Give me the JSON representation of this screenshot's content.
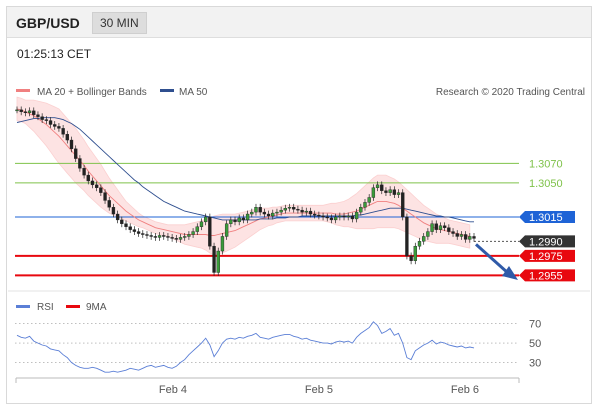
{
  "header": {
    "symbol": "GBP/USD",
    "timeframe": "30 MIN"
  },
  "timestamp": "01:25:13 CET",
  "copyright": "Research © 2020 Trading Central",
  "chart_data": [
    {
      "type": "candlestick",
      "legend": [
        {
          "label": "MA 20 + Bollinger Bands",
          "color": "#f08080"
        },
        {
          "label": "MA 50",
          "color": "#2f4f8f"
        }
      ],
      "x_tick_labels": [
        "Feb 4",
        "Feb 5",
        "Feb 6"
      ],
      "y_range": [
        1.294,
        1.313
      ],
      "price_close": [
        1.3125,
        1.3123,
        1.3122,
        1.3124,
        1.312,
        1.3118,
        1.3115,
        1.3114,
        1.311,
        1.3108,
        1.3106,
        1.31,
        1.3094,
        1.3085,
        1.3075,
        1.3065,
        1.3058,
        1.3052,
        1.3048,
        1.3045,
        1.304,
        1.3032,
        1.3025,
        1.3018,
        1.3012,
        1.3008,
        1.3005,
        1.3002,
        1.3,
        1.2998,
        1.2997,
        1.2996,
        1.2995,
        1.2994,
        1.2996,
        1.2995,
        1.2994,
        1.2993,
        1.2992,
        1.2994,
        1.2995,
        1.2997,
        1.3,
        1.3005,
        1.301,
        1.3015,
        1.2985,
        1.2958,
        1.298,
        1.2995,
        1.3008,
        1.3012,
        1.301,
        1.3014,
        1.3012,
        1.3018,
        1.302,
        1.3025,
        1.302,
        1.3018,
        1.3016,
        1.3019,
        1.302,
        1.3022,
        1.3024,
        1.3025,
        1.3023,
        1.3022,
        1.302,
        1.3021,
        1.3018,
        1.3017,
        1.3016,
        1.3015,
        1.3014,
        1.3012,
        1.3015,
        1.3016,
        1.3015,
        1.3016,
        1.3013,
        1.302,
        1.3025,
        1.303,
        1.3035,
        1.3045,
        1.3048,
        1.3042,
        1.304,
        1.3043,
        1.3038,
        1.304,
        1.3015,
        1.2975,
        1.297,
        1.2985,
        1.299,
        1.2995,
        1.3,
        1.3008,
        1.3002,
        1.3006,
        1.3004,
        1.3,
        1.2998,
        1.2995,
        1.2997,
        1.2992,
        1.2995,
        1.2993
      ],
      "ma50": [
        1.3112,
        1.3113,
        1.3114,
        1.3115,
        1.3116,
        1.3116,
        1.3117,
        1.3117,
        1.3117,
        1.3117,
        1.3116,
        1.3115,
        1.3113,
        1.3111,
        1.3108,
        1.3105,
        1.3101,
        1.3097,
        1.3093,
        1.3089,
        1.3085,
        1.3081,
        1.3077,
        1.3073,
        1.3069,
        1.3065,
        1.3061,
        1.3057,
        1.3053,
        1.305,
        1.3046,
        1.3043,
        1.304,
        1.3037,
        1.3034,
        1.3031,
        1.3029,
        1.3027,
        1.3025,
        1.3023,
        1.3021,
        1.302,
        1.3019,
        1.3018,
        1.3017,
        1.3016,
        1.3015,
        1.3014,
        1.3013,
        1.3012,
        1.3012,
        1.3012,
        1.3012,
        1.3012,
        1.3012,
        1.3012,
        1.3012,
        1.3012,
        1.3013,
        1.3013,
        1.3013,
        1.3013,
        1.3014,
        1.3014,
        1.3014,
        1.3015,
        1.3015,
        1.3015,
        1.3016,
        1.3016,
        1.3016,
        1.3016,
        1.3016,
        1.3016,
        1.3016,
        1.3016,
        1.3016,
        1.3016,
        1.3016,
        1.3016,
        1.3016,
        1.3017,
        1.3017,
        1.3018,
        1.3019,
        1.302,
        1.3021,
        1.3022,
        1.3023,
        1.3024,
        1.3024,
        1.3024,
        1.3024,
        1.3023,
        1.3022,
        1.3021,
        1.302,
        1.3019,
        1.3018,
        1.3017,
        1.3016,
        1.3016,
        1.3015,
        1.3015,
        1.3014,
        1.3013,
        1.3012,
        1.3011,
        1.301,
        1.301
      ],
      "ma20": [
        1.3126,
        1.3125,
        1.3123,
        1.3121,
        1.3119,
        1.3116,
        1.3113,
        1.311,
        1.3106,
        1.3102,
        1.3098,
        1.3093,
        1.3088,
        1.3083,
        1.3078,
        1.3073,
        1.3068,
        1.3062,
        1.3057,
        1.3052,
        1.3047,
        1.3042,
        1.3037,
        1.3033,
        1.3029,
        1.3025,
        1.3021,
        1.3018,
        1.3015,
        1.3012,
        1.301,
        1.3008,
        1.3006,
        1.3004,
        1.3003,
        1.3002,
        1.3001,
        1.3,
        1.2999,
        1.2998,
        1.2997,
        1.2997,
        1.2997,
        1.2997,
        1.2997,
        1.2997,
        1.2996,
        1.2996,
        1.2997,
        1.2998,
        1.2999,
        1.3,
        1.3001,
        1.3003,
        1.3005,
        1.3007,
        1.3009,
        1.3011,
        1.3013,
        1.3014,
        1.3015,
        1.3016,
        1.3017,
        1.3018,
        1.3019,
        1.3019,
        1.3019,
        1.3019,
        1.3019,
        1.3019,
        1.3019,
        1.3019,
        1.3019,
        1.3019,
        1.3019,
        1.3019,
        1.3018,
        1.3018,
        1.3018,
        1.3019,
        1.302,
        1.3021,
        1.3023,
        1.3025,
        1.3027,
        1.3029,
        1.3031,
        1.3031,
        1.3031,
        1.303,
        1.3029,
        1.3027,
        1.3024,
        1.3021,
        1.3018,
        1.3015,
        1.3012,
        1.3009,
        1.3007,
        1.3005,
        1.3003,
        1.3002,
        1.3001,
        1.3,
        1.2999,
        1.2998,
        1.2997,
        1.2996,
        1.2995
      ],
      "bollinger_width": [
        0.0012,
        0.0012,
        0.0012,
        0.0014,
        0.0016,
        0.0018,
        0.002,
        0.0022,
        0.0024,
        0.0026,
        0.0028,
        0.0028,
        0.0028,
        0.0028,
        0.0028,
        0.0027,
        0.0026,
        0.0025,
        0.0024,
        0.0023,
        0.0022,
        0.002,
        0.0018,
        0.0016,
        0.0014,
        0.0012,
        0.001,
        0.0009,
        0.0008,
        0.0007,
        0.0006,
        0.0006,
        0.0006,
        0.0006,
        0.0006,
        0.0006,
        0.0006,
        0.0007,
        0.0008,
        0.0009,
        0.001,
        0.0011,
        0.0012,
        0.0013,
        0.0014,
        0.0016,
        0.0018,
        0.002,
        0.002,
        0.002,
        0.0019,
        0.0018,
        0.0017,
        0.0016,
        0.0015,
        0.0014,
        0.0013,
        0.0012,
        0.0011,
        0.001,
        0.0009,
        0.0009,
        0.0008,
        0.0008,
        0.0008,
        0.0008,
        0.0008,
        0.0008,
        0.0008,
        0.0008,
        0.0008,
        0.0008,
        0.0008,
        0.0008,
        0.0009,
        0.001,
        0.0011,
        0.0012,
        0.0013,
        0.0014,
        0.0016,
        0.0018,
        0.002,
        0.0022,
        0.0024,
        0.0026,
        0.0027,
        0.0027,
        0.0027,
        0.0026,
        0.0025,
        0.0024,
        0.0023,
        0.0022,
        0.0021,
        0.002,
        0.0019,
        0.0018,
        0.0017,
        0.0016,
        0.0015,
        0.0014,
        0.0013,
        0.0012,
        0.0012,
        0.0012,
        0.0012,
        0.0012,
        0.0012,
        0.0012
      ],
      "levels": [
        {
          "value": 1.307,
          "label": "1.3070",
          "color": "#7fc24a",
          "style": "line"
        },
        {
          "value": 1.305,
          "label": "1.3050",
          "color": "#7fc24a",
          "style": "line"
        },
        {
          "value": 1.3015,
          "label": "1.3015",
          "color": "#1e63d6",
          "style": "tag"
        },
        {
          "value": 1.299,
          "label": "1.2990",
          "color": "#333333",
          "style": "tag"
        },
        {
          "value": 1.2975,
          "label": "1.2975",
          "color": "#e8080f",
          "style": "tag"
        },
        {
          "value": 1.2955,
          "label": "1.2955",
          "color": "#e8080f",
          "style": "tag"
        }
      ]
    },
    {
      "type": "line",
      "legend": [
        {
          "label": "RSI",
          "color": "#5b7fd6"
        },
        {
          "label": "9MA",
          "color": "#e8080f"
        }
      ],
      "y_range": [
        15,
        80
      ],
      "y_ticks": [
        70,
        50,
        30
      ],
      "rsi": [
        58,
        56,
        55,
        57,
        52,
        50,
        48,
        47,
        44,
        43,
        42,
        38,
        35,
        30,
        27,
        25,
        24,
        24,
        25,
        24,
        22,
        20,
        20,
        21,
        20,
        21,
        22,
        24,
        23,
        22,
        24,
        26,
        27,
        25,
        26,
        27,
        25,
        24,
        26,
        30,
        33,
        38,
        42,
        46,
        50,
        55,
        48,
        36,
        42,
        50,
        54,
        55,
        54,
        56,
        55,
        57,
        58,
        60,
        56,
        55,
        54,
        56,
        57,
        58,
        59,
        59,
        57,
        56,
        54,
        55,
        53,
        52,
        51,
        50,
        50,
        49,
        51,
        52,
        51,
        52,
        50,
        56,
        60,
        63,
        66,
        72,
        68,
        60,
        62,
        65,
        58,
        60,
        50,
        35,
        33,
        42,
        45,
        48,
        50,
        53,
        49,
        51,
        50,
        48,
        47,
        46,
        47,
        45,
        46,
        45
      ]
    }
  ]
}
